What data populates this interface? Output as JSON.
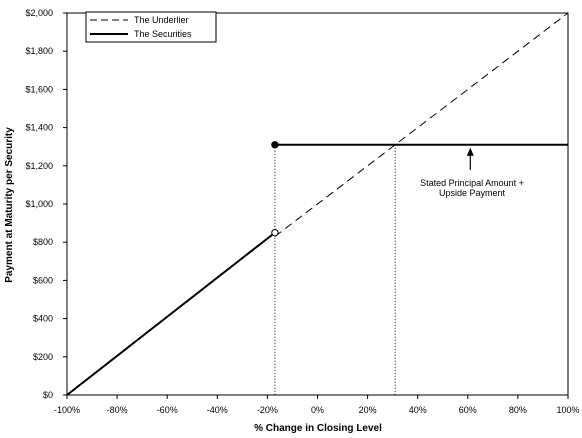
{
  "chart_data": {
    "type": "line",
    "xlabel": "% Change in Closing Level",
    "ylabel": "Payment at Maturity per Security",
    "xlim": [
      -100,
      100
    ],
    "ylim": [
      0,
      2000
    ],
    "x_ticks": [
      "-100%",
      "-80%",
      "-60%",
      "-40%",
      "-20%",
      "0%",
      "20%",
      "40%",
      "60%",
      "80%",
      "100%"
    ],
    "x_tick_values": [
      -100,
      -80,
      -60,
      -40,
      -20,
      0,
      20,
      40,
      60,
      80,
      100
    ],
    "y_ticks": [
      "$0",
      "$200",
      "$400",
      "$600",
      "$800",
      "$1,000",
      "$1,200",
      "$1,400",
      "$1,600",
      "$1,800",
      "$2,000"
    ],
    "y_tick_values": [
      0,
      200,
      400,
      600,
      800,
      1000,
      1200,
      1400,
      1600,
      1800,
      2000
    ],
    "grid": false,
    "legend_position": "top-left",
    "series": [
      {
        "name": "The Underlier",
        "style": "dashed",
        "color": "#000000",
        "x": [
          -17,
          100
        ],
        "y": [
          830,
          2000
        ]
      },
      {
        "name": "The Securities",
        "style": "solid",
        "color": "#000000",
        "segments": [
          {
            "x": [
              -100,
              -17
            ],
            "y": [
              0,
              850
            ]
          },
          {
            "x": [
              -17,
              100
            ],
            "y": [
              1310,
              1310
            ]
          }
        ]
      }
    ],
    "markers": [
      {
        "x": -17,
        "y": 1310,
        "fill": "filled"
      },
      {
        "x": -17,
        "y": 850,
        "fill": "open"
      }
    ],
    "reference_lines": [
      {
        "x": -17,
        "y": 1310
      },
      {
        "x": 31,
        "y": 1310
      }
    ],
    "annotations": [
      {
        "text": [
          "Stated Principal Amount +",
          "Upside Payment"
        ],
        "arrow_to": {
          "x": 61,
          "y": 1310
        }
      }
    ]
  }
}
